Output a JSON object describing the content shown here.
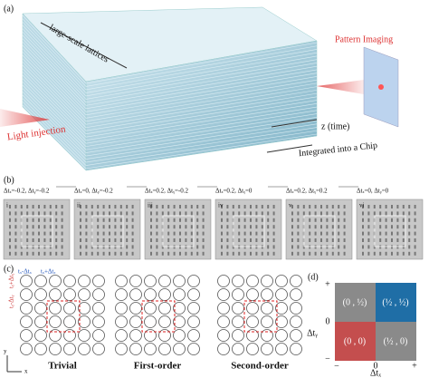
{
  "panel_a": {
    "label": "(a)",
    "lattices": "large-scale lattices",
    "imaging": "Pattern Imaging",
    "injection": "Light injection",
    "z_axis": "z (time)",
    "chip": "Integrated into a Chip"
  },
  "panel_b": {
    "label": "(b)",
    "params": [
      "Δtₓ=-0.2, Δtᵧ=-0.2",
      "Δtₓ=0, Δtᵧ=-0.2",
      "Δtₓ=0.2, Δtᵧ=-0.2",
      "Δtₓ=0.2, Δtᵧ=0",
      "Δtₓ=0.2, Δtᵧ=0.2",
      "Δtₓ=0, Δtᵧ=0"
    ],
    "numerals": [
      "i",
      "ii",
      "iii",
      "iv",
      "v",
      "vi"
    ]
  },
  "panel_c": {
    "label": "(c)",
    "hop_x_minus": "tₓ-Δtₓ",
    "hop_x_plus": "tₓ+Δtₓ",
    "hop_y_plus": "tᵧ+Δtᵧ",
    "hop_y_minus": "tᵧ-Δtᵧ",
    "axis_y": "y",
    "axis_x": "x",
    "lattices": [
      "Trivial",
      "First-order",
      "Second-order"
    ]
  },
  "panel_d": {
    "label": "(d)",
    "y_axis": "Δtᵧ",
    "x_axis": "Δtₓ",
    "plus": "+",
    "minus": "−",
    "zero": "0",
    "cells": [
      "(0 , ½)",
      "(½ , ½)",
      "(0 , 0)",
      "(½ , 0)"
    ]
  }
}
